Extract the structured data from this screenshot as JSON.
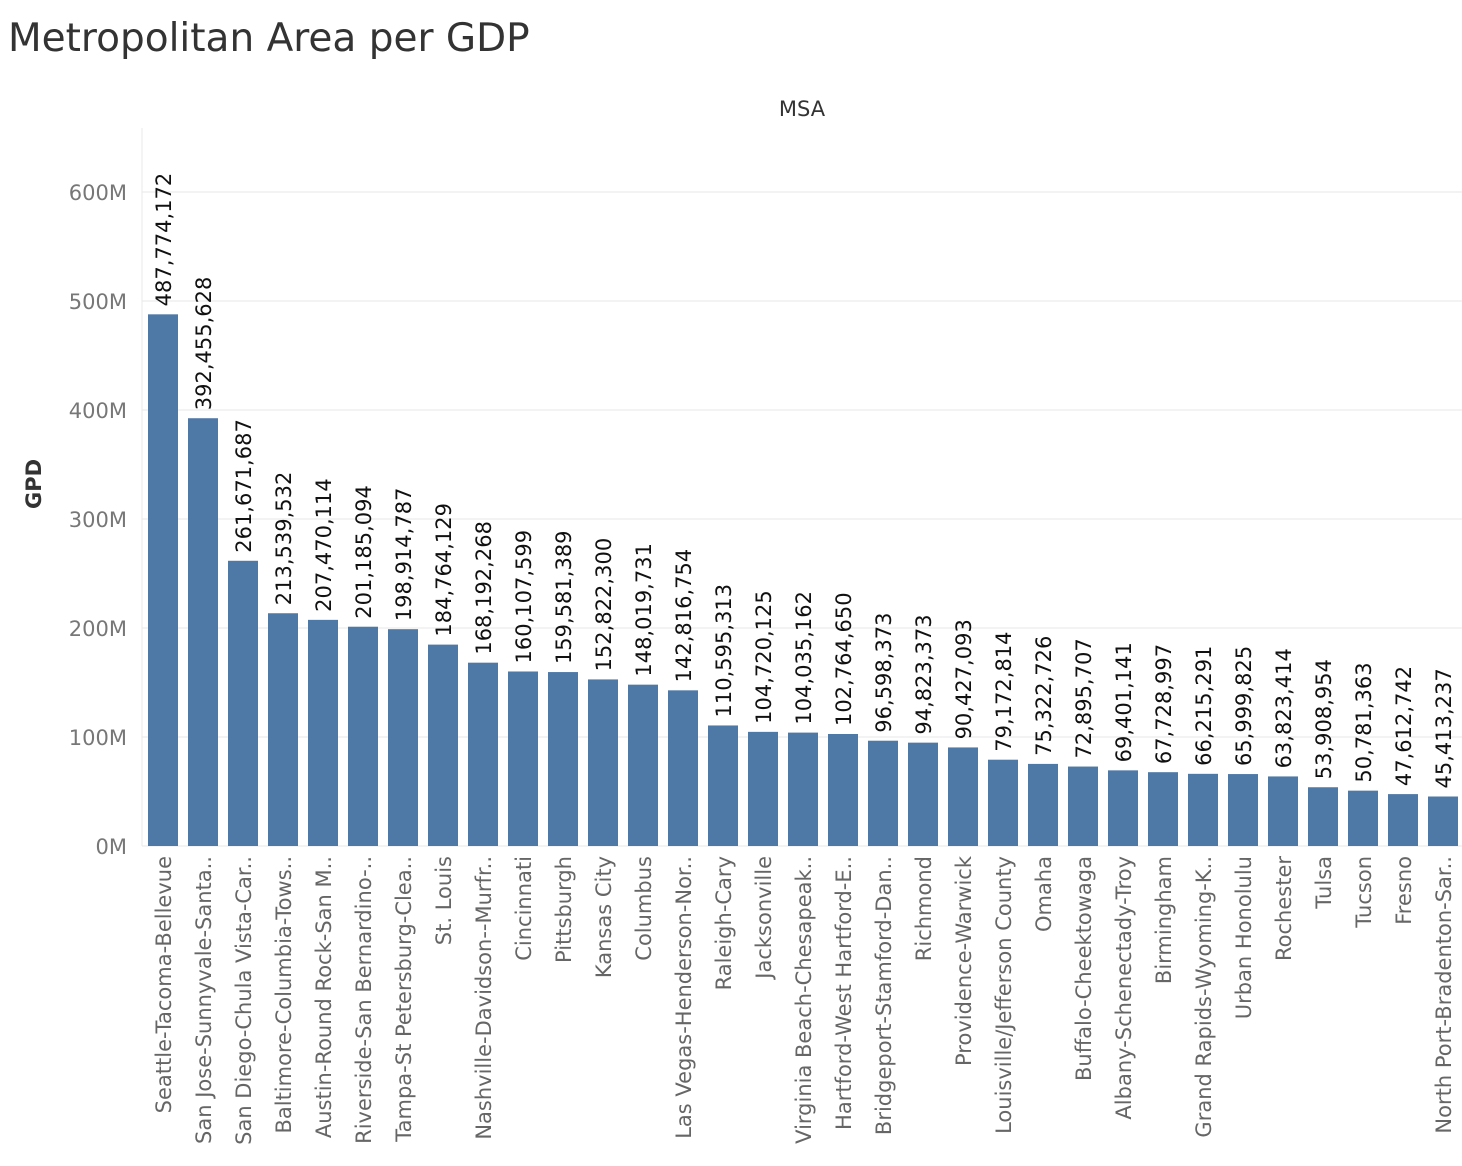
{
  "chart_data": {
    "type": "bar",
    "title": "Metropolitan Area per GDP",
    "xlabel": "MSA",
    "ylabel": "GPD",
    "ylim": [
      0,
      650000000
    ],
    "y_ticks": [
      0,
      100000000,
      200000000,
      300000000,
      400000000,
      500000000,
      600000000
    ],
    "y_tick_labels": [
      "0M",
      "100M",
      "200M",
      "300M",
      "400M",
      "500M",
      "600M"
    ],
    "grid": true,
    "bar_color": "#4e79a7",
    "categories": [
      "Seattle-Tacoma-Bellevue",
      "San Jose-Sunnyvale-Santa..",
      "San Diego-Chula Vista-Car..",
      "Baltimore-Columbia-Tows..",
      "Austin-Round Rock-San M..",
      "Riverside-San Bernardino-..",
      "Tampa-St Petersburg-Clea..",
      "St. Louis",
      "Nashville-Davidson--Murfr..",
      "Cincinnati",
      "Pittsburgh",
      "Kansas City",
      "Columbus",
      "Las Vegas-Henderson-Nor..",
      "Raleigh-Cary",
      "Jacksonville",
      "Virginia Beach-Chesapeak..",
      "Hartford-West Hartford-E..",
      "Bridgeport-Stamford-Dan..",
      "Richmond",
      "Providence-Warwick",
      "Louisville/Jefferson County",
      "Omaha",
      "Buffalo-Cheektowaga",
      "Albany-Schenectady-Troy",
      "Birmingham",
      "Grand Rapids-Wyoming-K..",
      "Urban Honolulu",
      "Rochester",
      "Tulsa",
      "Tucson",
      "Fresno",
      "North Port-Bradenton-Sar.."
    ],
    "values": [
      487774172,
      392455628,
      261671687,
      213539532,
      207470114,
      201185094,
      198914787,
      184764129,
      168192268,
      160107599,
      159581389,
      152822300,
      148019731,
      142816754,
      110595313,
      104720125,
      104035162,
      102764650,
      96598373,
      94823373,
      90427093,
      79172814,
      75322726,
      72895707,
      69401141,
      67728997,
      66215291,
      65999825,
      63823414,
      53908954,
      50781363,
      47612742,
      45413237
    ],
    "value_labels": [
      "487,774,172",
      "392,455,628",
      "261,671,687",
      "213,539,532",
      "207,470,114",
      "201,185,094",
      "198,914,787",
      "184,764,129",
      "168,192,268",
      "160,107,599",
      "159,581,389",
      "152,822,300",
      "148,019,731",
      "142,816,754",
      "110,595,313",
      "104,720,125",
      "104,035,162",
      "102,764,650",
      "96,598,373",
      "94,823,373",
      "90,427,093",
      "79,172,814",
      "75,322,726",
      "72,895,707",
      "69,401,141",
      "67,728,997",
      "66,215,291",
      "65,999,825",
      "63,823,414",
      "53,908,954",
      "50,781,363",
      "47,612,742",
      "45,413,237"
    ]
  }
}
